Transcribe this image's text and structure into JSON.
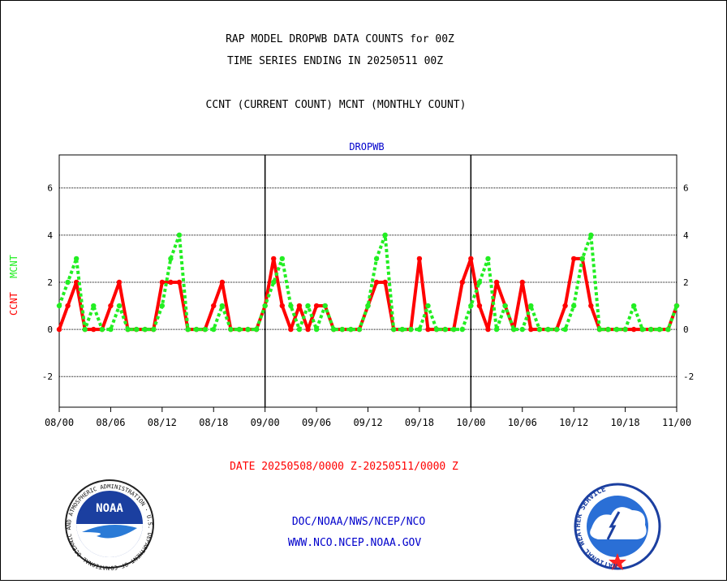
{
  "header": {
    "title_line1": "RAP MODEL DROPWB DATA COUNTS for 00Z",
    "title_line2": "TIME SERIES ENDING IN 20250511 00Z",
    "subtitle": "CCNT (CURRENT COUNT) MCNT (MONTHLY COUNT)"
  },
  "chart_data": {
    "type": "line",
    "title": "DROPWB",
    "ylabel_ccnt": "CCNT",
    "ylabel_mcnt": "MCNT",
    "ylim": [
      -3.3,
      7.4
    ],
    "yticks": [
      -2,
      0,
      2,
      4,
      6
    ],
    "ytick_labels": [
      "-2",
      "0",
      "2",
      "4",
      "6"
    ],
    "xlim": [
      0,
      72
    ],
    "x_tick_positions": [
      0,
      6,
      12,
      18,
      24,
      30,
      36,
      42,
      48,
      54,
      60,
      66,
      72
    ],
    "x_tick_labels": [
      "08/00",
      "08/06",
      "08/12",
      "08/18",
      "09/00",
      "09/06",
      "09/12",
      "09/18",
      "10/00",
      "10/06",
      "10/12",
      "10/18",
      "11/00"
    ],
    "day_dividers": [
      24,
      48
    ],
    "grid": true,
    "colors": {
      "ccnt": "#ff0000",
      "mcnt": "#22ee22",
      "title": "#0000cc",
      "date": "#ff0000",
      "footer": "#0000cc"
    },
    "series": [
      {
        "name": "CCNT",
        "style": "solid",
        "x": [
          0,
          1,
          2,
          3,
          4,
          5,
          6,
          7,
          8,
          9,
          10,
          11,
          12,
          13,
          14,
          15,
          16,
          17,
          18,
          19,
          20,
          21,
          22,
          23,
          24,
          25,
          26,
          27,
          28,
          29,
          30,
          31,
          32,
          33,
          34,
          35,
          36,
          37,
          38,
          39,
          40,
          41,
          42,
          43,
          44,
          45,
          46,
          47,
          48,
          49,
          50,
          51,
          52,
          53,
          54,
          55,
          56,
          57,
          58,
          59,
          60,
          61,
          62,
          63,
          64,
          65,
          66,
          67,
          68,
          69,
          70,
          71,
          72
        ],
        "values": [
          0,
          1,
          2,
          0,
          0,
          0,
          1,
          2,
          0,
          0,
          0,
          0,
          2,
          2,
          2,
          0,
          0,
          0,
          1,
          2,
          0,
          0,
          0,
          0,
          1,
          3,
          1,
          0,
          1,
          0,
          1,
          1,
          0,
          0,
          0,
          0,
          1,
          2,
          2,
          0,
          0,
          0,
          3,
          0,
          0,
          0,
          0,
          2,
          3,
          1,
          0,
          2,
          1,
          0,
          2,
          0,
          0,
          0,
          0,
          1,
          3,
          3,
          1,
          0,
          0,
          0,
          0,
          0,
          0,
          0,
          0,
          0,
          1
        ]
      },
      {
        "name": "MCNT",
        "style": "dotted",
        "x": [
          0,
          1,
          2,
          3,
          4,
          5,
          6,
          7,
          8,
          9,
          10,
          11,
          12,
          13,
          14,
          15,
          16,
          17,
          18,
          19,
          20,
          21,
          22,
          23,
          24,
          25,
          26,
          27,
          28,
          29,
          30,
          31,
          32,
          33,
          34,
          35,
          36,
          37,
          38,
          39,
          40,
          41,
          42,
          43,
          44,
          45,
          46,
          47,
          48,
          49,
          50,
          51,
          52,
          53,
          54,
          55,
          56,
          57,
          58,
          59,
          60,
          61,
          62,
          63,
          64,
          65,
          66,
          67,
          68,
          69,
          70,
          71,
          72
        ],
        "values": [
          1,
          2,
          3,
          0,
          1,
          0,
          0,
          1,
          0,
          0,
          0,
          0,
          1,
          3,
          4,
          0,
          0,
          0,
          0,
          1,
          0,
          0,
          0,
          0,
          1,
          2,
          3,
          1,
          0,
          1,
          0,
          1,
          0,
          0,
          0,
          0,
          1,
          3,
          4,
          0,
          0,
          0,
          0,
          1,
          0,
          0,
          0,
          0,
          1,
          2,
          3,
          0,
          1,
          0,
          0,
          1,
          0,
          0,
          0,
          0,
          1,
          3,
          4,
          0,
          0,
          0,
          0,
          1,
          0,
          0,
          0,
          0,
          1
        ]
      }
    ]
  },
  "date_range": "DATE 20250508/0000 Z-20250511/0000 Z",
  "footer": {
    "line1": "DOC/NOAA/NWS/NCEP/NCO",
    "line2": "WWW.NCO.NCEP.NOAA.GOV"
  },
  "logos": {
    "left_text": "NOAA",
    "left_ring_text": "NATIONAL OCEANIC AND ATMOSPHERIC ADMINISTRATION · U.S. DEPARTMENT OF COMMERCE",
    "right_ring_text": "NATIONAL WEATHER SERVICE"
  }
}
